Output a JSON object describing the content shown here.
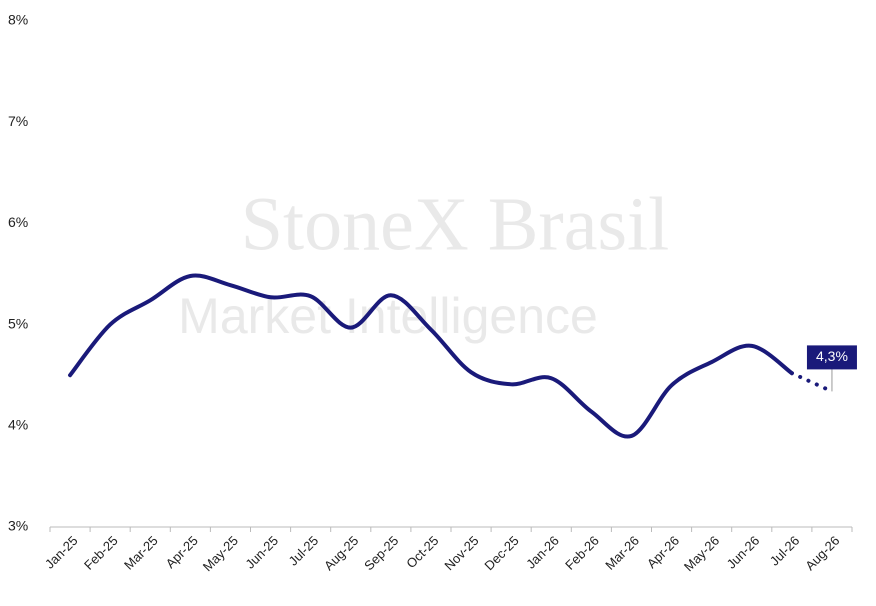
{
  "chart_data": {
    "type": "line",
    "watermark": [
      "StoneX Brasil",
      "Market Intelligence"
    ],
    "categories": [
      "Jan-25",
      "Feb-25",
      "Mar-25",
      "Apr-25",
      "May-25",
      "Jun-25",
      "Jul-25",
      "Aug-25",
      "Sep-25",
      "Oct-25",
      "Nov-25",
      "Dec-25",
      "Jan-26",
      "Feb-26",
      "Mar-26",
      "Apr-26",
      "May-26",
      "Jun-26",
      "Jul-26",
      "Aug-26"
    ],
    "series": [
      {
        "color": "#1a1a7a",
        "line_style": "solid",
        "values": [
          4.5,
          5.0,
          5.24,
          5.48,
          5.39,
          5.27,
          5.28,
          4.97,
          5.29,
          4.95,
          4.53,
          4.41,
          4.47,
          4.14,
          3.9,
          4.4,
          4.63,
          4.79,
          4.52,
          null
        ]
      },
      {
        "color": "#1a1a7a",
        "line_style": "dotted",
        "values": [
          null,
          null,
          null,
          null,
          null,
          null,
          null,
          null,
          null,
          null,
          null,
          null,
          null,
          null,
          null,
          null,
          null,
          null,
          4.52,
          4.34
        ],
        "value_labels": [
          null,
          null,
          null,
          null,
          null,
          null,
          null,
          null,
          null,
          null,
          null,
          null,
          null,
          null,
          null,
          null,
          null,
          null,
          null,
          "4,3%"
        ]
      }
    ],
    "ylim": [
      3,
      8
    ],
    "yticks": [
      {
        "value": 3,
        "label": "3%"
      },
      {
        "value": 4,
        "label": "4%"
      },
      {
        "value": 5,
        "label": "5%"
      },
      {
        "value": 6,
        "label": "6%"
      },
      {
        "value": 7,
        "label": "7%"
      },
      {
        "value": 8,
        "label": "8%"
      }
    ],
    "grid": false
  }
}
